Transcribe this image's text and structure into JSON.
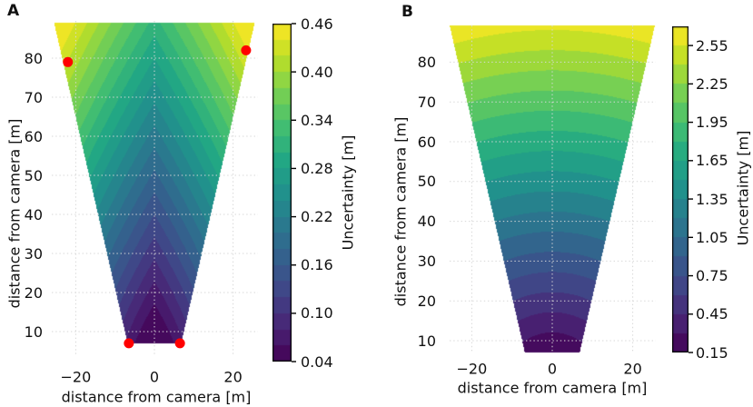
{
  "figure_description": "Two-panel camera field-of-view uncertainty contour figure",
  "background": "#ffffff",
  "text_color": "#111111",
  "grid_color": "#d7d7d7",
  "colormap_stops": [
    "#440154",
    "#482475",
    "#414487",
    "#355f8d",
    "#2a788e",
    "#21918c",
    "#22a884",
    "#44bf70",
    "#7ad151",
    "#bddf26",
    "#fde725"
  ],
  "chart_data": [
    {
      "id": "A",
      "type": "heatmap",
      "subtype": "filled-contour-field-of-view",
      "title": "A",
      "xlabel": "distance from camera [m]",
      "ylabel": "distance from camera [m]",
      "xticks": [
        -20,
        0,
        20
      ],
      "yticks": [
        10,
        20,
        30,
        40,
        50,
        60,
        70,
        80
      ],
      "xlim": [
        -26.1,
        26.1
      ],
      "ylim": [
        2.5,
        89
      ],
      "grid": true,
      "grid_style": "dotted",
      "colormap": "viridis",
      "fov_region": {
        "y_near": 7,
        "y_far": 89,
        "half_width_near": 6.8,
        "half_width_far": 25.5
      },
      "colorbar": {
        "label": "Uncertainty [m]",
        "vmin": 0.04,
        "vmax": 0.46,
        "band_step": 0.02,
        "tick_labels": [
          "0.04",
          "0.10",
          "0.16",
          "0.22",
          "0.28",
          "0.34",
          "0.40",
          "0.46"
        ]
      },
      "uncertainty_model": {
        "formula": "u = offset + radial*sqrt(x^2+y^2) + lateral*|x|",
        "offset": 0,
        "radial": 0.0035,
        "lateral": 0.006
      },
      "markers": {
        "label": "reference-points",
        "color": "#ff0000",
        "radius_px": 5.5,
        "points": [
          [
            -22,
            79
          ],
          [
            23.3,
            82
          ],
          [
            -6.5,
            7
          ],
          [
            6.5,
            7
          ]
        ]
      }
    },
    {
      "id": "B",
      "type": "heatmap",
      "subtype": "filled-contour-field-of-view",
      "title": "B",
      "xlabel": "distance from camera [m]",
      "ylabel": "distance from camera [m]",
      "xticks": [
        -20,
        0,
        20
      ],
      "yticks": [
        10,
        20,
        30,
        40,
        50,
        60,
        70,
        80
      ],
      "xlim": [
        -25.7,
        25.7
      ],
      "ylim": [
        6.6,
        89.2
      ],
      "grid": true,
      "grid_style": "dotted",
      "colormap": "viridis",
      "fov_region": {
        "y_near": 7,
        "y_far": 89.2,
        "half_width_near": 6.8,
        "half_width_far": 25.5
      },
      "colorbar": {
        "label": "Uncertainty [m]",
        "vmin": 0.15,
        "vmax": 2.7,
        "band_step": 0.15,
        "tick_labels": [
          "0.15",
          "0.45",
          "0.75",
          "1.05",
          "1.35",
          "1.65",
          "1.95",
          "2.25",
          "2.55"
        ]
      },
      "uncertainty_model": {
        "formula": "u = offset + radial*sqrt(x^2+y^2) + lateral*|x|",
        "offset": -0.057,
        "radial": 0.0296,
        "lateral": 0
      },
      "markers": {
        "label": "reference-points",
        "color": "#ff0000",
        "radius_px": 5.5,
        "points": []
      }
    }
  ]
}
